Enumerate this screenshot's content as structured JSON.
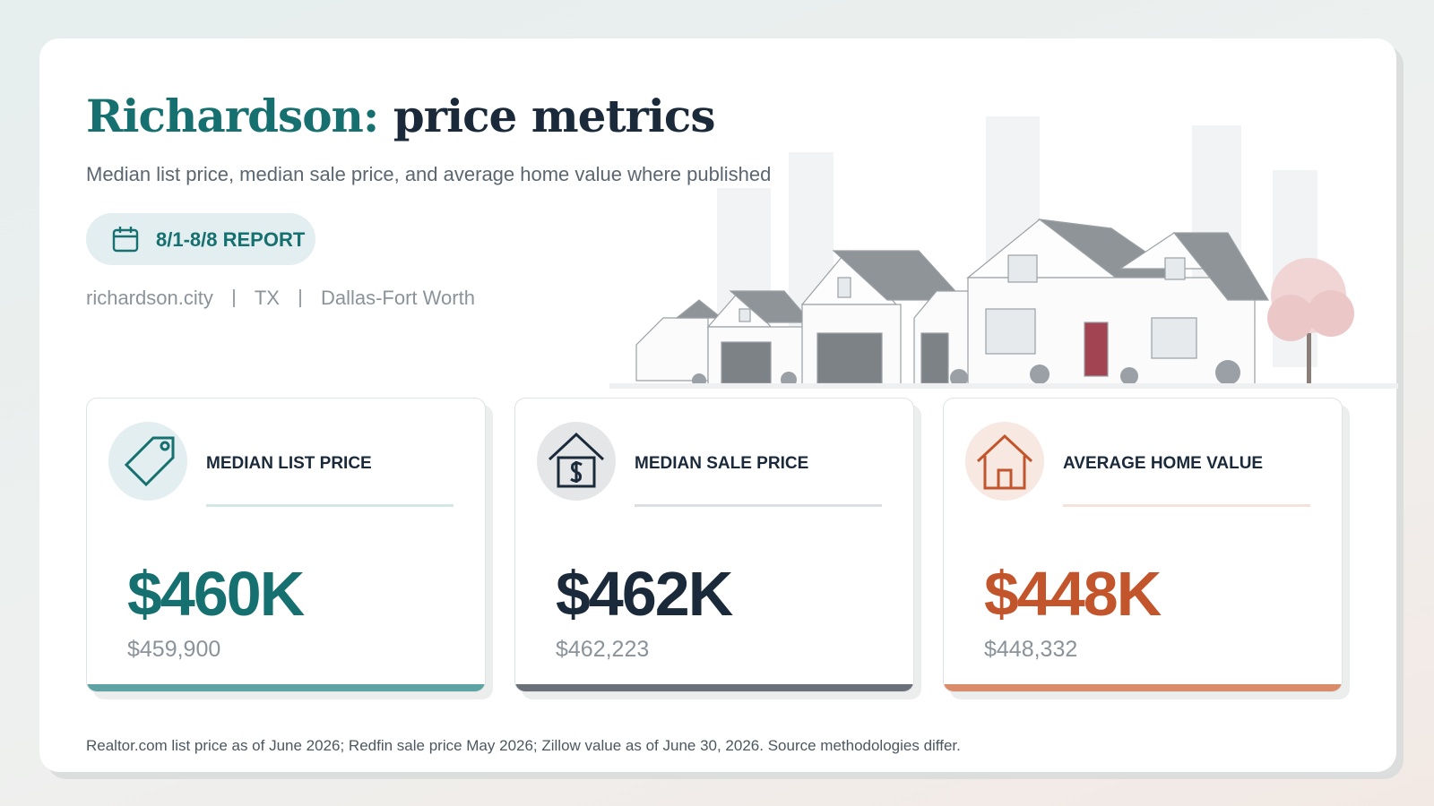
{
  "header": {
    "title_place": "Richardson:",
    "title_rest": "price metrics",
    "subtitle": "Median list price, median sale price, and average home value where published",
    "badge": "8/1-8/8 REPORT",
    "meta": [
      "richardson.city",
      "TX",
      "Dallas-Fort Worth"
    ]
  },
  "cards": [
    {
      "label": "MEDIAN LIST PRICE",
      "value": "$460K",
      "exact": "$459,900"
    },
    {
      "label": "MEDIAN SALE PRICE",
      "value": "$462K",
      "exact": "$462,223"
    },
    {
      "label": "AVERAGE HOME VALUE",
      "value": "$448K",
      "exact": "$448,332"
    }
  ],
  "footer": {
    "note": "Realtor.com list price as of June 2026; Redfin sale price May 2026; Zillow value as of June 30, 2026. Source methodologies differ."
  }
}
